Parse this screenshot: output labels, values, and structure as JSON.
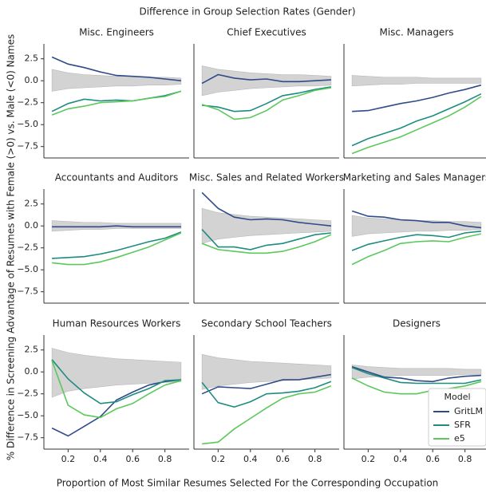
{
  "figure": {
    "title": "Difference in Group Selection Rates (Gender)",
    "xlabel": "Proportion of Most Similar Resumes Selected For the Corresponding Occupation",
    "ylabel": "% Difference in Screening Advantage of Resumes with Female (>0) vs. Male (<0) Names",
    "legend_title": "Model",
    "xlim": [
      0.05,
      0.95
    ],
    "xticks": [
      0.2,
      0.4,
      0.6,
      0.8
    ],
    "ylim": [
      -8.8,
      4.2
    ],
    "yticks": [
      2.5,
      {
        "value": 0,
        "label": "0.0"
      },
      {
        "value": -2.5,
        "label": "−2.5"
      },
      {
        "value": -5,
        "label": "−5.0"
      },
      {
        "value": -7.5,
        "label": "−7.5"
      }
    ]
  },
  "chart_data": [
    {
      "type": "line",
      "title": "Misc. Engineers",
      "x": [
        0.1,
        0.2,
        0.3,
        0.4,
        0.5,
        0.6,
        0.7,
        0.8,
        0.9
      ],
      "band": {
        "color": "#d3d3d3",
        "upper": [
          1.3,
          0.9,
          0.7,
          0.6,
          0.5,
          0.5,
          0.4,
          0.4,
          0.3
        ],
        "lower": [
          -1.2,
          -0.9,
          -0.8,
          -0.7,
          -0.6,
          -0.6,
          -0.5,
          -0.5,
          -0.4
        ]
      },
      "series": [
        {
          "name": "GritLM",
          "color": "#2f4b88",
          "values": [
            2.7,
            1.9,
            1.5,
            1.0,
            0.6,
            0.5,
            0.4,
            0.2,
            0.0
          ]
        },
        {
          "name": "SFR",
          "color": "#1f8c80",
          "values": [
            -3.5,
            -2.6,
            -2.1,
            -2.3,
            -2.2,
            -2.3,
            -2.0,
            -1.7,
            -1.2
          ]
        },
        {
          "name": "e5",
          "color": "#5cc85c",
          "values": [
            -3.9,
            -3.2,
            -2.9,
            -2.5,
            -2.4,
            -2.3,
            -2.0,
            -1.8,
            -1.2
          ]
        }
      ]
    },
    {
      "type": "line",
      "title": "Chief Executives",
      "x": [
        0.1,
        0.2,
        0.3,
        0.4,
        0.5,
        0.6,
        0.7,
        0.8,
        0.9
      ],
      "band": {
        "color": "#d3d3d3",
        "upper": [
          1.7,
          1.3,
          1.1,
          0.9,
          0.8,
          0.7,
          0.7,
          0.6,
          0.5
        ],
        "lower": [
          -1.7,
          -1.3,
          -1.1,
          -0.9,
          -0.8,
          -0.7,
          -0.6,
          -0.6,
          -0.5
        ]
      },
      "series": [
        {
          "name": "GritLM",
          "color": "#2f4b88",
          "values": [
            -0.3,
            0.7,
            0.3,
            0.1,
            0.2,
            -0.1,
            -0.1,
            0.0,
            0.1
          ]
        },
        {
          "name": "SFR",
          "color": "#1f8c80",
          "values": [
            -2.8,
            -3.0,
            -3.5,
            -3.4,
            -2.6,
            -1.7,
            -1.4,
            -1.0,
            -0.7
          ]
        },
        {
          "name": "e5",
          "color": "#5cc85c",
          "values": [
            -2.7,
            -3.3,
            -4.4,
            -4.2,
            -3.4,
            -2.2,
            -1.7,
            -1.1,
            -0.8
          ]
        }
      ]
    },
    {
      "type": "line",
      "title": "Misc. Managers",
      "x": [
        0.1,
        0.2,
        0.3,
        0.4,
        0.5,
        0.6,
        0.7,
        0.8,
        0.9
      ],
      "band": {
        "color": "#d3d3d3",
        "upper": [
          0.6,
          0.5,
          0.4,
          0.4,
          0.4,
          0.3,
          0.3,
          0.3,
          0.3
        ],
        "lower": [
          -0.6,
          -0.5,
          -0.4,
          -0.4,
          -0.3,
          -0.3,
          -0.3,
          -0.3,
          -0.3
        ]
      },
      "series": [
        {
          "name": "GritLM",
          "color": "#2f4b88",
          "values": [
            -3.5,
            -3.4,
            -3.0,
            -2.6,
            -2.3,
            -1.9,
            -1.4,
            -1.0,
            -0.5
          ]
        },
        {
          "name": "SFR",
          "color": "#1f8c80",
          "values": [
            -7.4,
            -6.6,
            -6.0,
            -5.4,
            -4.6,
            -4.0,
            -3.2,
            -2.4,
            -1.5
          ]
        },
        {
          "name": "e5",
          "color": "#5cc85c",
          "values": [
            -8.3,
            -7.6,
            -7.0,
            -6.4,
            -5.6,
            -4.8,
            -4.0,
            -3.0,
            -1.8
          ]
        }
      ]
    },
    {
      "type": "line",
      "title": "Accountants and Auditors",
      "x": [
        0.1,
        0.2,
        0.3,
        0.4,
        0.5,
        0.6,
        0.7,
        0.8,
        0.9
      ],
      "band": {
        "color": "#d3d3d3",
        "upper": [
          0.6,
          0.5,
          0.4,
          0.4,
          0.3,
          0.3,
          0.3,
          0.3,
          0.3
        ],
        "lower": [
          -0.6,
          -0.5,
          -0.4,
          -0.4,
          -0.3,
          -0.3,
          -0.3,
          -0.3,
          -0.3
        ]
      },
      "series": [
        {
          "name": "GritLM",
          "color": "#2f4b88",
          "values": [
            -0.1,
            -0.1,
            -0.1,
            -0.1,
            0.0,
            -0.1,
            -0.1,
            -0.1,
            -0.1
          ]
        },
        {
          "name": "SFR",
          "color": "#1f8c80",
          "values": [
            -3.7,
            -3.6,
            -3.5,
            -3.2,
            -2.8,
            -2.3,
            -1.8,
            -1.4,
            -0.7
          ]
        },
        {
          "name": "e5",
          "color": "#5cc85c",
          "values": [
            -4.2,
            -4.4,
            -4.4,
            -4.1,
            -3.6,
            -3.0,
            -2.4,
            -1.6,
            -0.8
          ]
        }
      ]
    },
    {
      "type": "line",
      "title": "Misc. Sales and Related Workers",
      "x": [
        0.1,
        0.2,
        0.3,
        0.4,
        0.5,
        0.6,
        0.7,
        0.8,
        0.9
      ],
      "band": {
        "color": "#d3d3d3",
        "upper": [
          2.0,
          1.5,
          1.3,
          1.1,
          1.0,
          0.9,
          0.8,
          0.7,
          0.6
        ],
        "lower": [
          -2.0,
          -1.5,
          -1.3,
          -1.1,
          -1.0,
          -0.9,
          -0.8,
          -0.7,
          -0.6
        ]
      },
      "series": [
        {
          "name": "GritLM",
          "color": "#2f4b88",
          "values": [
            3.8,
            2.0,
            1.0,
            0.7,
            0.8,
            0.7,
            0.4,
            0.2,
            0.0
          ]
        },
        {
          "name": "SFR",
          "color": "#1f8c80",
          "values": [
            -0.4,
            -2.4,
            -2.4,
            -2.7,
            -2.2,
            -2.0,
            -1.5,
            -1.0,
            -0.8
          ]
        },
        {
          "name": "e5",
          "color": "#5cc85c",
          "values": [
            -2.0,
            -2.7,
            -2.9,
            -3.1,
            -3.1,
            -2.9,
            -2.4,
            -1.8,
            -1.0
          ]
        }
      ]
    },
    {
      "type": "line",
      "title": "Marketing and Sales Managers",
      "x": [
        0.1,
        0.2,
        0.3,
        0.4,
        0.5,
        0.6,
        0.7,
        0.8,
        0.9
      ],
      "band": {
        "color": "#d3d3d3",
        "upper": [
          1.2,
          0.9,
          0.8,
          0.7,
          0.6,
          0.6,
          0.5,
          0.5,
          0.4
        ],
        "lower": [
          -1.2,
          -0.9,
          -0.8,
          -0.7,
          -0.6,
          -0.6,
          -0.5,
          -0.5,
          -0.4
        ]
      },
      "series": [
        {
          "name": "GritLM",
          "color": "#2f4b88",
          "values": [
            1.7,
            1.1,
            1.0,
            0.7,
            0.6,
            0.4,
            0.4,
            0.0,
            -0.2
          ]
        },
        {
          "name": "SFR",
          "color": "#1f8c80",
          "values": [
            -2.8,
            -2.1,
            -1.7,
            -1.3,
            -1.0,
            -1.1,
            -1.3,
            -0.8,
            -0.6
          ]
        },
        {
          "name": "e5",
          "color": "#5cc85c",
          "values": [
            -4.4,
            -3.5,
            -2.8,
            -2.0,
            -1.8,
            -1.7,
            -1.8,
            -1.3,
            -0.9
          ]
        }
      ]
    },
    {
      "type": "line",
      "title": "Human Resources Workers",
      "x": [
        0.1,
        0.2,
        0.3,
        0.4,
        0.5,
        0.6,
        0.7,
        0.8,
        0.9
      ],
      "band": {
        "color": "#d3d3d3",
        "upper": [
          2.7,
          2.2,
          1.9,
          1.7,
          1.5,
          1.4,
          1.3,
          1.2,
          1.1
        ],
        "lower": [
          -2.9,
          -2.2,
          -1.9,
          -1.7,
          -1.5,
          -1.4,
          -1.3,
          -1.2,
          -1.1
        ]
      },
      "series": [
        {
          "name": "GritLM",
          "color": "#2f4b88",
          "values": [
            -6.4,
            -7.3,
            -6.2,
            -5.1,
            -3.2,
            -2.3,
            -1.5,
            -1.1,
            -0.9
          ]
        },
        {
          "name": "SFR",
          "color": "#1f8c80",
          "values": [
            1.4,
            -0.8,
            -2.4,
            -3.6,
            -3.4,
            -2.6,
            -1.9,
            -1.0,
            -0.9
          ]
        },
        {
          "name": "e5",
          "color": "#5cc85c",
          "values": [
            1.3,
            -3.8,
            -4.9,
            -5.2,
            -4.2,
            -3.6,
            -2.5,
            -1.5,
            -1.0
          ]
        }
      ]
    },
    {
      "type": "line",
      "title": "Secondary School Teachers",
      "x": [
        0.1,
        0.2,
        0.3,
        0.4,
        0.5,
        0.6,
        0.7,
        0.8,
        0.9
      ],
      "band": {
        "color": "#d3d3d3",
        "upper": [
          2.0,
          1.6,
          1.4,
          1.2,
          1.1,
          1.0,
          0.9,
          0.8,
          0.7
        ],
        "lower": [
          -2.0,
          -1.6,
          -1.4,
          -1.2,
          -1.1,
          -1.0,
          -0.9,
          -0.8,
          -0.7
        ]
      },
      "series": [
        {
          "name": "GritLM",
          "color": "#2f4b88",
          "values": [
            -2.5,
            -1.7,
            -1.8,
            -1.9,
            -1.4,
            -0.9,
            -0.9,
            -0.6,
            -0.3
          ]
        },
        {
          "name": "SFR",
          "color": "#1f8c80",
          "values": [
            -1.2,
            -3.5,
            -4.0,
            -3.4,
            -2.5,
            -2.4,
            -2.2,
            -1.8,
            -1.1
          ]
        },
        {
          "name": "e5",
          "color": "#5cc85c",
          "values": [
            -8.2,
            -8.0,
            -6.5,
            -5.3,
            -4.1,
            -3.0,
            -2.5,
            -2.3,
            -1.6
          ]
        }
      ]
    },
    {
      "type": "line",
      "title": "Designers",
      "x": [
        0.1,
        0.2,
        0.3,
        0.4,
        0.5,
        0.6,
        0.7,
        0.8,
        0.9
      ],
      "legend": "lower right",
      "band": {
        "color": "#d3d3d3",
        "upper": [
          0.8,
          0.6,
          0.5,
          0.4,
          0.4,
          0.4,
          0.4,
          0.3,
          0.3
        ],
        "lower": [
          -0.8,
          -0.6,
          -0.5,
          -0.4,
          -0.4,
          -0.4,
          -0.4,
          -0.3,
          -0.3
        ]
      },
      "series": [
        {
          "name": "GritLM",
          "color": "#2f4b88",
          "values": [
            0.6,
            0.0,
            -0.6,
            -0.7,
            -1.0,
            -1.1,
            -0.7,
            -0.5,
            -0.4
          ]
        },
        {
          "name": "SFR",
          "color": "#1f8c80",
          "values": [
            0.5,
            -0.2,
            -0.7,
            -1.2,
            -1.3,
            -1.3,
            -1.3,
            -1.3,
            -0.9
          ]
        },
        {
          "name": "e5",
          "color": "#5cc85c",
          "values": [
            -0.7,
            -1.6,
            -2.3,
            -2.5,
            -2.5,
            -2.1,
            -1.9,
            -1.6,
            -1.1
          ]
        }
      ]
    }
  ]
}
